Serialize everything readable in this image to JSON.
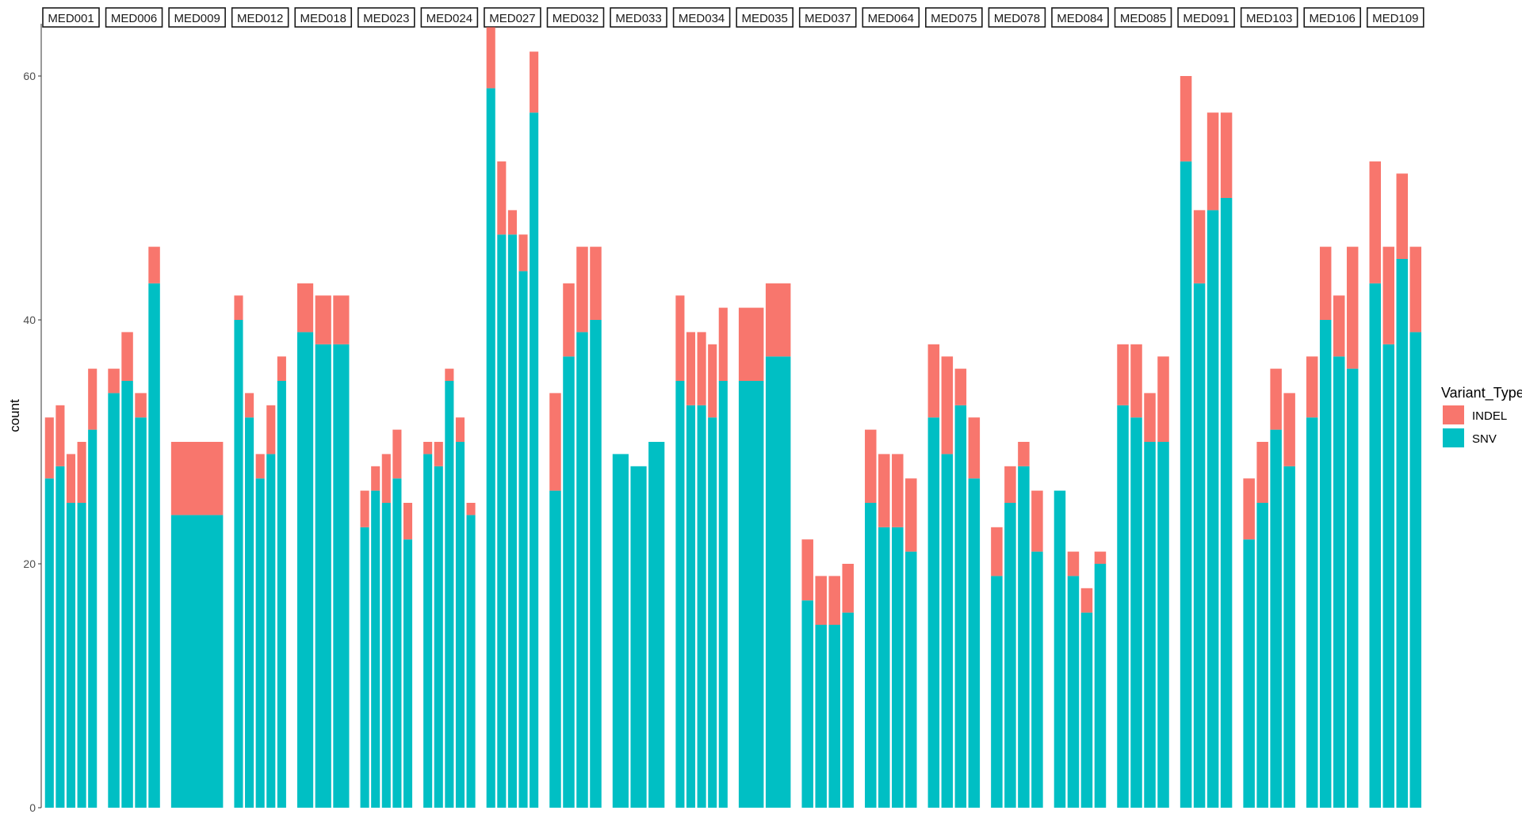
{
  "chart_data": {
    "type": "bar",
    "stacked": true,
    "faceted_by": "sample",
    "ylabel": "count",
    "xlabel": "",
    "ylim": [
      0,
      64
    ],
    "yticks": [
      0,
      20,
      40,
      60
    ],
    "grid": false,
    "legend": {
      "title": "Variant_Type",
      "placement": "right",
      "entries": [
        {
          "name": "INDEL",
          "color": "#F8766D"
        },
        {
          "name": "SNV",
          "color": "#00BFC4"
        }
      ]
    },
    "series_order": [
      "SNV",
      "INDEL"
    ],
    "colors": {
      "SNV": "#00BFC4",
      "INDEL": "#F8766D"
    },
    "facets": [
      {
        "label": "MED001",
        "bars": [
          {
            "SNV": 27,
            "INDEL": 5
          },
          {
            "SNV": 28,
            "INDEL": 5
          },
          {
            "SNV": 25,
            "INDEL": 4
          },
          {
            "SNV": 25,
            "INDEL": 5
          },
          {
            "SNV": 31,
            "INDEL": 5
          }
        ]
      },
      {
        "label": "MED006",
        "bars": [
          {
            "SNV": 34,
            "INDEL": 2
          },
          {
            "SNV": 35,
            "INDEL": 4
          },
          {
            "SNV": 32,
            "INDEL": 2
          },
          {
            "SNV": 43,
            "INDEL": 3
          }
        ]
      },
      {
        "label": "MED009",
        "bars": [
          {
            "SNV": 24,
            "INDEL": 6
          }
        ]
      },
      {
        "label": "MED012",
        "bars": [
          {
            "SNV": 40,
            "INDEL": 2
          },
          {
            "SNV": 32,
            "INDEL": 2
          },
          {
            "SNV": 27,
            "INDEL": 2
          },
          {
            "SNV": 29,
            "INDEL": 4
          },
          {
            "SNV": 35,
            "INDEL": 2
          }
        ]
      },
      {
        "label": "MED018",
        "bars": [
          {
            "SNV": 39,
            "INDEL": 4
          },
          {
            "SNV": 38,
            "INDEL": 4
          },
          {
            "SNV": 38,
            "INDEL": 4
          }
        ]
      },
      {
        "label": "MED023",
        "bars": [
          {
            "SNV": 23,
            "INDEL": 3
          },
          {
            "SNV": 26,
            "INDEL": 2
          },
          {
            "SNV": 25,
            "INDEL": 4
          },
          {
            "SNV": 27,
            "INDEL": 4
          },
          {
            "SNV": 22,
            "INDEL": 3
          }
        ]
      },
      {
        "label": "MED024",
        "bars": [
          {
            "SNV": 29,
            "INDEL": 1
          },
          {
            "SNV": 28,
            "INDEL": 2
          },
          {
            "SNV": 35,
            "INDEL": 1
          },
          {
            "SNV": 30,
            "INDEL": 2
          },
          {
            "SNV": 24,
            "INDEL": 1
          }
        ]
      },
      {
        "label": "MED027",
        "bars": [
          {
            "SNV": 59,
            "INDEL": 5
          },
          {
            "SNV": 47,
            "INDEL": 6
          },
          {
            "SNV": 47,
            "INDEL": 2
          },
          {
            "SNV": 44,
            "INDEL": 3
          },
          {
            "SNV": 57,
            "INDEL": 5
          }
        ]
      },
      {
        "label": "MED032",
        "bars": [
          {
            "SNV": 26,
            "INDEL": 8
          },
          {
            "SNV": 37,
            "INDEL": 6
          },
          {
            "SNV": 39,
            "INDEL": 7
          },
          {
            "SNV": 40,
            "INDEL": 6
          }
        ]
      },
      {
        "label": "MED033",
        "bars": [
          {
            "SNV": 29,
            "INDEL": 0
          },
          {
            "SNV": 28,
            "INDEL": 0
          },
          {
            "SNV": 30,
            "INDEL": 0
          }
        ]
      },
      {
        "label": "MED034",
        "bars": [
          {
            "SNV": 35,
            "INDEL": 7
          },
          {
            "SNV": 33,
            "INDEL": 6
          },
          {
            "SNV": 33,
            "INDEL": 6
          },
          {
            "SNV": 32,
            "INDEL": 6
          },
          {
            "SNV": 35,
            "INDEL": 6
          }
        ]
      },
      {
        "label": "MED035",
        "bars": [
          {
            "SNV": 35,
            "INDEL": 6
          },
          {
            "SNV": 37,
            "INDEL": 6
          }
        ]
      },
      {
        "label": "MED037",
        "bars": [
          {
            "SNV": 17,
            "INDEL": 5
          },
          {
            "SNV": 15,
            "INDEL": 4
          },
          {
            "SNV": 15,
            "INDEL": 4
          },
          {
            "SNV": 16,
            "INDEL": 4
          }
        ]
      },
      {
        "label": "MED064",
        "bars": [
          {
            "SNV": 25,
            "INDEL": 6
          },
          {
            "SNV": 23,
            "INDEL": 6
          },
          {
            "SNV": 23,
            "INDEL": 6
          },
          {
            "SNV": 21,
            "INDEL": 6
          }
        ]
      },
      {
        "label": "MED075",
        "bars": [
          {
            "SNV": 32,
            "INDEL": 6
          },
          {
            "SNV": 29,
            "INDEL": 8
          },
          {
            "SNV": 33,
            "INDEL": 3
          },
          {
            "SNV": 27,
            "INDEL": 5
          }
        ]
      },
      {
        "label": "MED078",
        "bars": [
          {
            "SNV": 19,
            "INDEL": 4
          },
          {
            "SNV": 25,
            "INDEL": 3
          },
          {
            "SNV": 28,
            "INDEL": 2
          },
          {
            "SNV": 21,
            "INDEL": 5
          }
        ]
      },
      {
        "label": "MED084",
        "bars": [
          {
            "SNV": 26,
            "INDEL": 0
          },
          {
            "SNV": 19,
            "INDEL": 2
          },
          {
            "SNV": 16,
            "INDEL": 2
          },
          {
            "SNV": 20,
            "INDEL": 1
          }
        ]
      },
      {
        "label": "MED085",
        "bars": [
          {
            "SNV": 33,
            "INDEL": 5
          },
          {
            "SNV": 32,
            "INDEL": 6
          },
          {
            "SNV": 30,
            "INDEL": 4
          },
          {
            "SNV": 30,
            "INDEL": 7
          }
        ]
      },
      {
        "label": "MED091",
        "bars": [
          {
            "SNV": 53,
            "INDEL": 7
          },
          {
            "SNV": 43,
            "INDEL": 6
          },
          {
            "SNV": 49,
            "INDEL": 8
          },
          {
            "SNV": 50,
            "INDEL": 7
          }
        ]
      },
      {
        "label": "MED103",
        "bars": [
          {
            "SNV": 22,
            "INDEL": 5
          },
          {
            "SNV": 25,
            "INDEL": 5
          },
          {
            "SNV": 31,
            "INDEL": 5
          },
          {
            "SNV": 28,
            "INDEL": 6
          }
        ]
      },
      {
        "label": "MED106",
        "bars": [
          {
            "SNV": 32,
            "INDEL": 5
          },
          {
            "SNV": 40,
            "INDEL": 6
          },
          {
            "SNV": 37,
            "INDEL": 5
          },
          {
            "SNV": 36,
            "INDEL": 10
          }
        ]
      },
      {
        "label": "MED109",
        "bars": [
          {
            "SNV": 43,
            "INDEL": 10
          },
          {
            "SNV": 38,
            "INDEL": 8
          },
          {
            "SNV": 45,
            "INDEL": 7
          },
          {
            "SNV": 39,
            "INDEL": 7
          }
        ]
      }
    ]
  }
}
